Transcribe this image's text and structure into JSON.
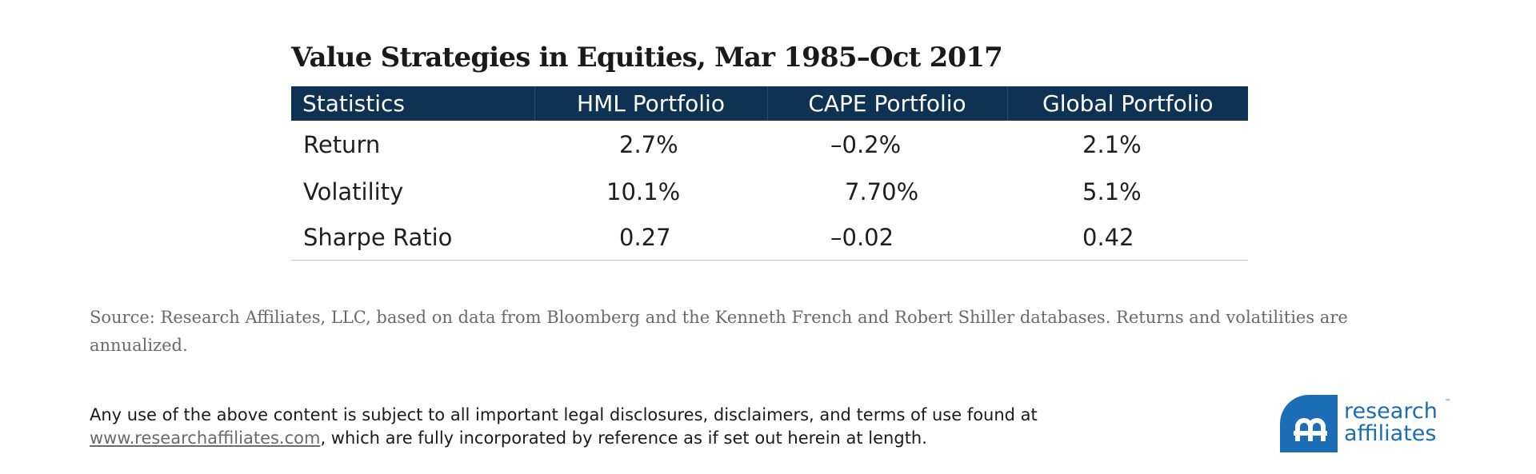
{
  "chart_data": {
    "type": "table",
    "title": "Value Strategies in Equities, Mar 1985–Oct 2017",
    "columns": [
      "Statistics",
      "HML Portfolio",
      "CAPE Portfolio",
      "Global Portfolio"
    ],
    "rows": [
      {
        "label": "Return",
        "values": [
          "2.7%",
          "–0.2%",
          "2.1%"
        ]
      },
      {
        "label": "Volatility",
        "values": [
          "10.1%",
          "7.70%",
          "5.1%"
        ]
      },
      {
        "label": "Sharpe Ratio",
        "values": [
          "0.27",
          "–0.02",
          "0.42"
        ]
      }
    ],
    "header_color": "#0e3253"
  },
  "source_note": "Source: Research Affiliates, LLC, based on data from Bloomberg and the Kenneth French and Robert Shiller databases. Returns and volatilities are annualized.",
  "disclaimer": {
    "text_before": "Any use of the above content is subject to all important legal disclosures, disclaimers, and terms of use found at ",
    "link_text": "www.researchaffiliates.com",
    "text_after": ", which are fully incorporated by reference as if set out herein at length."
  },
  "logo": {
    "line1": "research",
    "line2": "affiliates",
    "trademark": "™",
    "icon": "ra-monogram-icon",
    "color": "#1b6db5"
  }
}
